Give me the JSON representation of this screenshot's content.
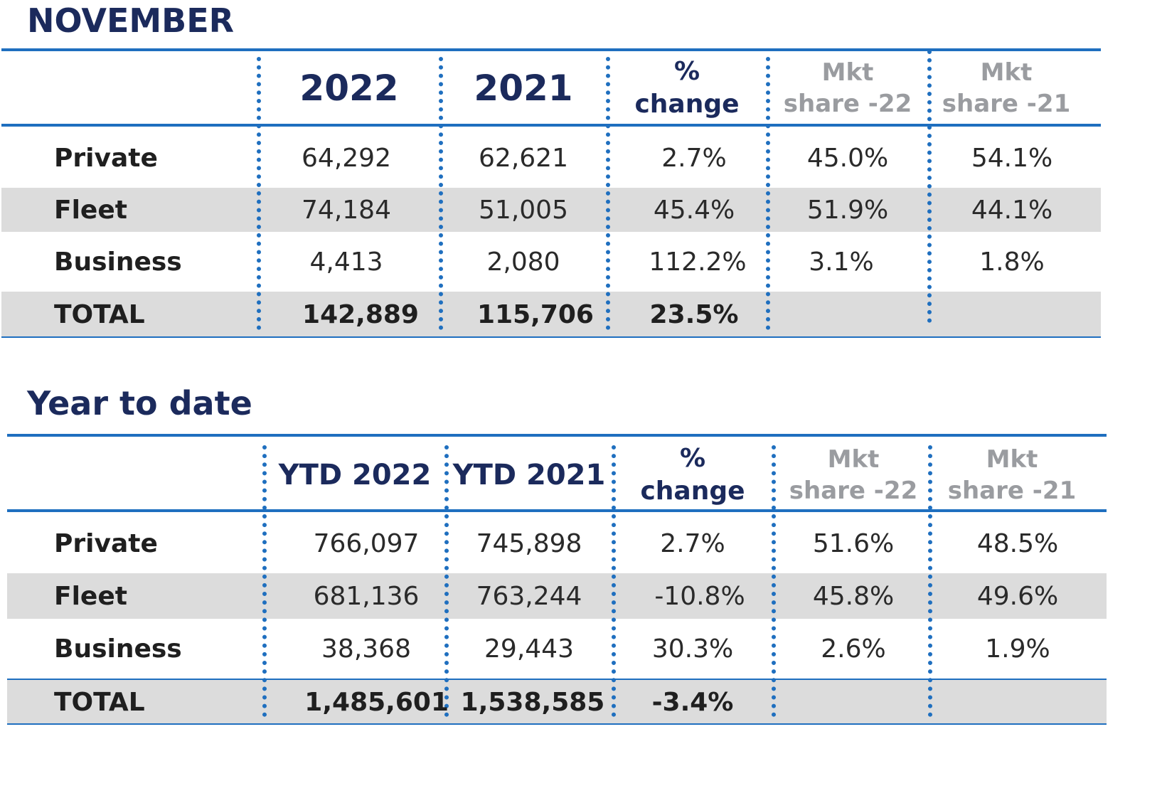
{
  "november": {
    "title": "NOVEMBER",
    "headers": {
      "col1": "2022",
      "col2": "2021",
      "pct_line1": "%",
      "pct_line2": "change",
      "mkt22_line1": "Mkt",
      "mkt22_line2": "share -22",
      "mkt21_line1": "Mkt",
      "mkt21_line2": "share -21"
    },
    "rows": [
      {
        "label": "Private",
        "v1": "64,292",
        "v2": "62,621",
        "pct": "2.7%",
        "mkt22": "45.0%",
        "mkt21": "54.1%"
      },
      {
        "label": "Fleet",
        "v1": "74,184",
        "v2": "51,005",
        "pct": "45.4%",
        "mkt22": "51.9%",
        "mkt21": "44.1%"
      },
      {
        "label": "Business",
        "v1": "4,413",
        "v2": "2,080",
        "pct": "112.2%",
        "mkt22": "3.1%",
        "mkt21": "1.8%"
      }
    ],
    "total": {
      "label": "TOTAL",
      "v1": "142,889",
      "v2": "115,706",
      "pct": "23.5%"
    }
  },
  "ytd": {
    "title": "Year to date",
    "headers": {
      "col1": "YTD 2022",
      "col2": "YTD 2021",
      "pct_line1": "%",
      "pct_line2": "change",
      "mkt22_line1": "Mkt",
      "mkt22_line2": "share -22",
      "mkt21_line1": "Mkt",
      "mkt21_line2": "share -21"
    },
    "rows": [
      {
        "label": "Private",
        "v1": "766,097",
        "v2": "745,898",
        "pct": "2.7%",
        "mkt22": "51.6%",
        "mkt21": "48.5%"
      },
      {
        "label": "Fleet",
        "v1": "681,136",
        "v2": "763,244",
        "pct": "-10.8%",
        "mkt22": "45.8%",
        "mkt21": "49.6%"
      },
      {
        "label": "Business",
        "v1": "38,368",
        "v2": "29,443",
        "pct": "30.3%",
        "mkt22": "2.6%",
        "mkt21": "1.9%"
      }
    ],
    "total": {
      "label": "TOTAL",
      "v1": "1,485,601",
      "v2": "1,538,585",
      "pct": "-3.4%"
    }
  },
  "colors": {
    "title": "#1b2a5c",
    "rule": "#1f6fbf",
    "band": "#dcdcdc",
    "muted_header": "#9a9ca0"
  }
}
